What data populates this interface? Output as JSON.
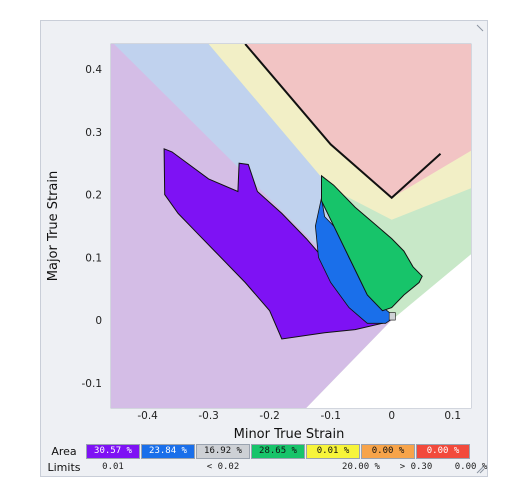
{
  "chart_data": {
    "type": "forming-limit-diagram",
    "xlabel": "Minor True Strain",
    "ylabel": "Major True Strain",
    "xlim": [
      -0.46,
      0.13
    ],
    "ylim": [
      -0.14,
      0.44
    ],
    "xticks": [
      "-0.4",
      "-0.3",
      "-0.2",
      "-0.1",
      "0",
      "0.1"
    ],
    "yticks": [
      "-0.1",
      "0",
      "0.1",
      "0.2",
      "0.3",
      "0.4"
    ],
    "forming_limit_curve": [
      [
        -0.24,
        0.44
      ],
      [
        -0.1,
        0.28
      ],
      [
        0.0,
        0.195
      ],
      [
        0.08,
        0.265
      ]
    ],
    "safety_curve": [
      [
        -0.3,
        0.44
      ],
      [
        -0.1,
        0.21
      ],
      [
        0.0,
        0.16
      ],
      [
        0.13,
        0.21
      ]
    ]
  },
  "colors": {
    "fail": "#f2c4c4",
    "margin": "#f2efc6",
    "safe": "#c8e8c8",
    "compression": "#c0d2ee",
    "wrinkle": "#d4bde6",
    "thin": "#7e12f4",
    "low": "#1a6fea",
    "high": "#17c46a"
  },
  "legend": {
    "area_label": "Area",
    "limits_label": "Limits",
    "areas": [
      {
        "text": "30.57 %",
        "bg": "#7e12f4",
        "fg": "#ffffff"
      },
      {
        "text": "23.84 %",
        "bg": "#1a6fea",
        "fg": "#ffffff"
      },
      {
        "text": "16.92 %",
        "bg": "#cdd0d5",
        "fg": "#111111"
      },
      {
        "text": "28.65 %",
        "bg": "#17c46a",
        "fg": "#111111"
      },
      {
        "text": "0.01 %",
        "bg": "#f7f43a",
        "fg": "#111111"
      },
      {
        "text": "0.00 %",
        "bg": "#f7a44a",
        "fg": "#111111"
      },
      {
        "text": "0.00 %",
        "bg": "#f24a3c",
        "fg": "#ffffff"
      }
    ],
    "limits": [
      "0.01",
      "< 0.02",
      "20.00 %",
      "> 0.30",
      "0.00 %"
    ]
  }
}
